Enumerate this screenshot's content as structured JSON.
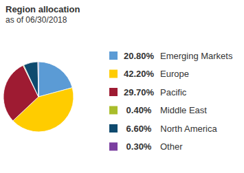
{
  "chart_data": {
    "type": "pie",
    "title": "Region allocation",
    "subtitle": "as of 06/30/2018",
    "categories": [
      "Emerging Markets",
      "Europe",
      "Pacific",
      "Middle East",
      "North America",
      "Other"
    ],
    "values": [
      20.8,
      42.2,
      29.7,
      0.4,
      6.6,
      0.3
    ],
    "value_labels": [
      "20.80%",
      "42.20%",
      "29.70%",
      "0.40%",
      "6.60%",
      "0.30%"
    ],
    "colors": [
      "#5b9bd5",
      "#ffcc00",
      "#9e1b32",
      "#a9bd2b",
      "#0e4a6e",
      "#7b3fa0"
    ],
    "legend": "right"
  }
}
